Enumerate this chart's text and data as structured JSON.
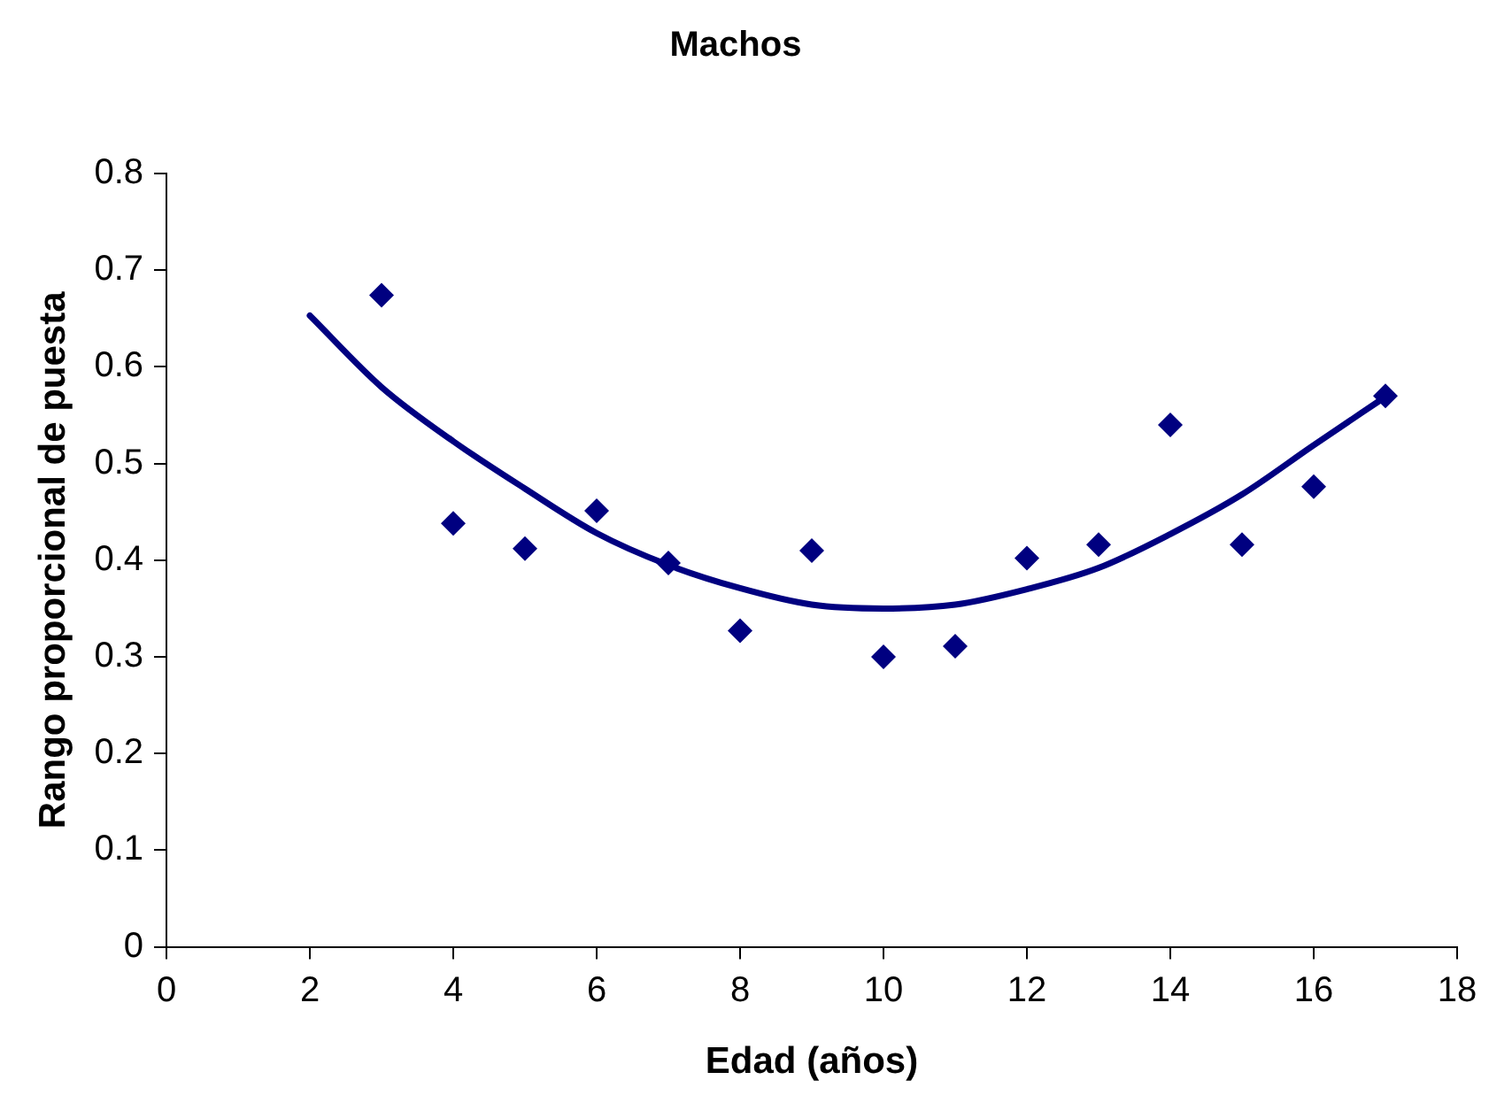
{
  "chart_data": {
    "type": "scatter",
    "title": "Machos",
    "xlabel": "Edad (años)",
    "ylabel": "Rango proporcional de puesta",
    "xlim": [
      0,
      18
    ],
    "xticks": [
      0,
      2,
      4,
      6,
      8,
      10,
      12,
      14,
      16,
      18
    ],
    "ylim": [
      0,
      0.8
    ],
    "yticks": [
      0,
      0.1,
      0.2,
      0.3,
      0.4,
      0.5,
      0.6,
      0.7,
      0.8
    ],
    "grid": false,
    "legend": false,
    "marker": "diamond",
    "series": [
      {
        "type": "scatter",
        "color": "#000080",
        "x": [
          3,
          4,
          5,
          6,
          7,
          8,
          9,
          10,
          11,
          12,
          13,
          14,
          15,
          16,
          17
        ],
        "values": [
          0.674,
          0.438,
          0.412,
          0.451,
          0.397,
          0.327,
          0.41,
          0.3,
          0.311,
          0.402,
          0.416,
          0.54,
          0.416,
          0.476,
          0.57
        ]
      },
      {
        "type": "line",
        "color": "#000080",
        "marker": "none",
        "line_style": "solid",
        "x": [
          2,
          3,
          4,
          5,
          6,
          7,
          8,
          9,
          10,
          11,
          12,
          13,
          14,
          15,
          16,
          17
        ],
        "values": [
          0.653,
          0.579,
          0.523,
          0.474,
          0.428,
          0.395,
          0.371,
          0.354,
          0.35,
          0.354,
          0.37,
          0.392,
          0.427,
          0.468,
          0.519,
          0.569
        ]
      }
    ]
  }
}
